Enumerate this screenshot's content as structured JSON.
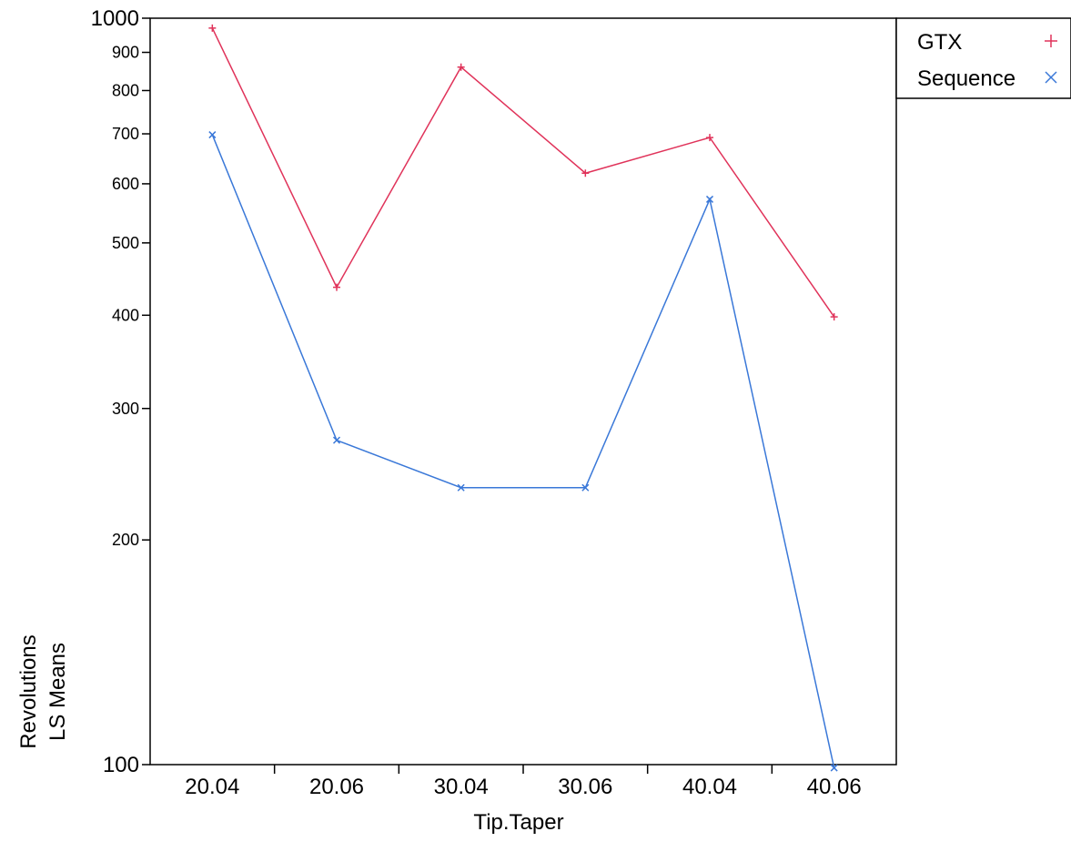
{
  "chart_data": {
    "type": "line",
    "title": "",
    "xlabel": "Tip.Taper",
    "ylabel_lines": [
      "Revolutions",
      "LS Means"
    ],
    "categories": [
      "20.04",
      "20.06",
      "30.04",
      "30.06",
      "40.04",
      "40.06"
    ],
    "y_scale": "log",
    "ylim": [
      100,
      1000
    ],
    "y_ticks": [
      100,
      200,
      300,
      400,
      500,
      600,
      700,
      800,
      900,
      1000
    ],
    "y_tick_labels": [
      "100",
      "200",
      "300",
      "400",
      "500",
      "600",
      "700",
      "800",
      "900",
      "1000"
    ],
    "grid": false,
    "legend_position": "top-right outside",
    "series": [
      {
        "name": "GTX",
        "color": "#e0335a",
        "marker": "plus",
        "values": [
          970,
          436,
          860,
          620,
          692,
          398
        ]
      },
      {
        "name": "Sequence",
        "color": "#3a78d8",
        "marker": "x",
        "values": [
          698,
          272,
          235,
          235,
          572,
          99
        ]
      }
    ]
  }
}
